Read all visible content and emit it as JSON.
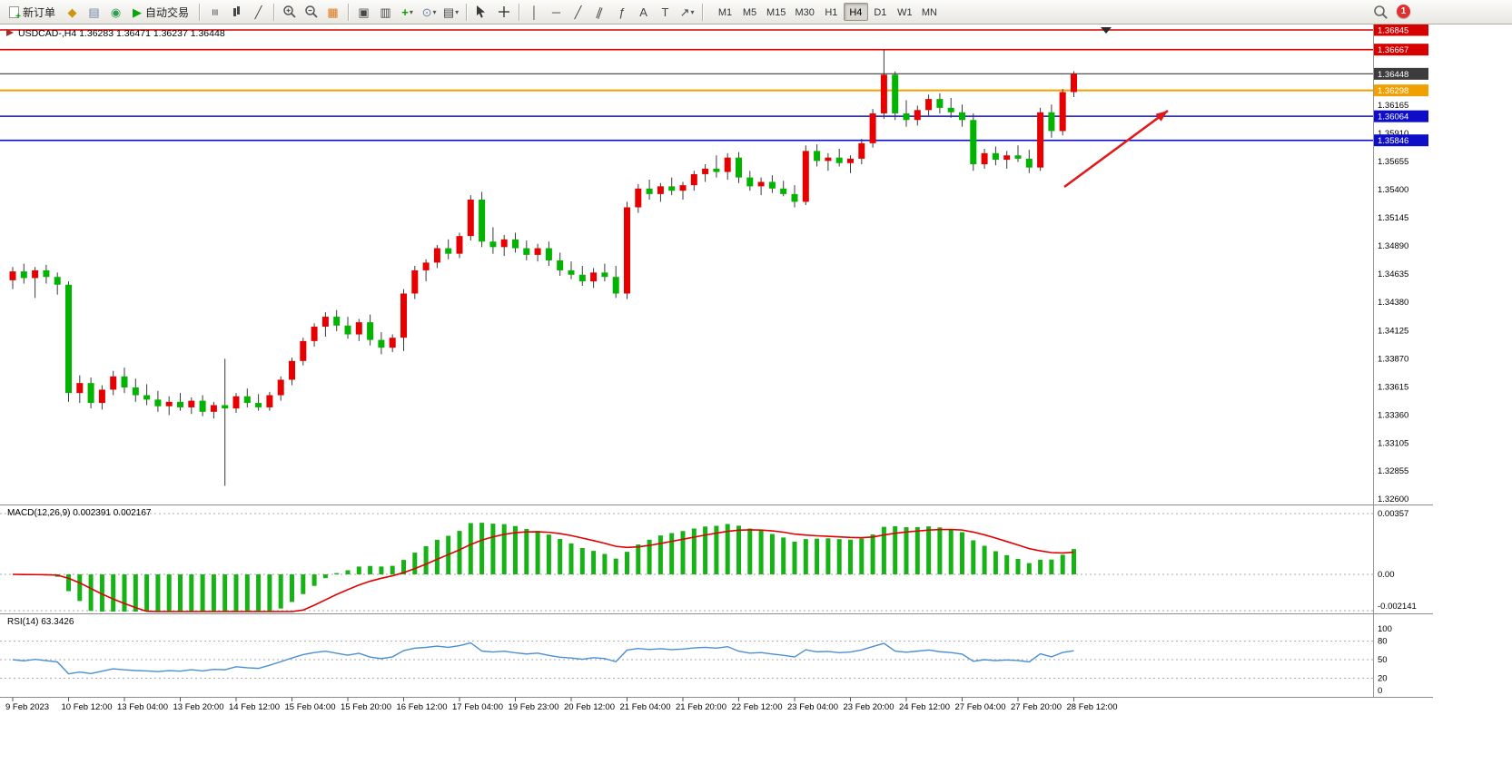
{
  "toolbar": {
    "new_order": "新订单",
    "auto_trading": "自动交易",
    "timeframes": [
      "M1",
      "M5",
      "M15",
      "M30",
      "H1",
      "H4",
      "D1",
      "W1",
      "MN"
    ],
    "active_timeframe": "H4",
    "notification_count": "1"
  },
  "chart": {
    "title": "USDCAD-,H4 1.36283 1.36471 1.36237 1.36448",
    "symbol": "USDCAD",
    "period": "H4",
    "ohlc": {
      "open": "1.36283",
      "high": "1.36471",
      "low": "1.36237",
      "close": "1.36448"
    },
    "price_axis": {
      "gridline_labels": [
        "1.36165",
        "1.35910",
        "1.35655",
        "1.35400",
        "1.35145",
        "1.34890",
        "1.34635",
        "1.34380",
        "1.34125",
        "1.33870",
        "1.33615",
        "1.33360",
        "1.33105",
        "1.32855",
        "1.32600"
      ]
    },
    "hlines": [
      {
        "price": 1.36845,
        "label": "1.36845",
        "color": "#d60000",
        "width": 1.6
      },
      {
        "price": 1.36667,
        "label": "1.36667",
        "color": "#d60000",
        "width": 1.6
      },
      {
        "price": 1.36448,
        "label": "1.36448",
        "color": "#3c3c3c",
        "width": 1.1
      },
      {
        "price": 1.36298,
        "label": "1.36298",
        "color": "#f0a000",
        "width": 2.0
      },
      {
        "price": 1.36064,
        "label": "1.36064",
        "color": "#0e0ec8",
        "width": 1.6
      },
      {
        "price": 1.35846,
        "label": "1.35846",
        "color": "#0e0ec8",
        "width": 1.6
      }
    ],
    "annotations": {
      "arrow": {
        "from": [
          1172,
          179
        ],
        "to": [
          1286,
          95
        ],
        "color": "#e01818"
      }
    }
  },
  "macd_panel": {
    "label": "MACD(12,26,9) 0.002391 0.002167",
    "axis_labels": [
      "0.00357",
      "0.00",
      "-0.002141"
    ],
    "histogram_color": "#16b216",
    "signal_color": "#e00000"
  },
  "rsi_panel": {
    "label": "RSI(14) 63.3426",
    "axis_labels": [
      "100",
      "80",
      "50",
      "20",
      "0"
    ],
    "levels": [
      80,
      50,
      20
    ],
    "line_color": "#4a8fd3"
  },
  "chart_data": [
    {
      "type": "candlestick",
      "symbol": "USDCAD",
      "timeframe": "H4",
      "up_color": "#e80000",
      "down_color": "#00b400",
      "y_axis": {
        "min": 1.32551,
        "max": 1.36894
      },
      "time_labels": [
        "9 Feb 2023",
        "10 Feb 12:00",
        "13 Feb 04:00",
        "13 Feb 20:00",
        "14 Feb 12:00",
        "15 Feb 04:00",
        "15 Feb 20:00",
        "16 Feb 12:00",
        "17 Feb 04:00",
        "19 Feb 23:00",
        "20 Feb 12:00",
        "21 Feb 04:00",
        "21 Feb 20:00",
        "22 Feb 12:00",
        "23 Feb 04:00",
        "23 Feb 20:00",
        "24 Feb 12:00",
        "27 Feb 04:00",
        "27 Feb 20:00",
        "28 Feb 12:00"
      ],
      "candles": [
        [
          1.3458,
          1.347,
          1.345,
          1.3466
        ],
        [
          1.3466,
          1.3473,
          1.3455,
          1.346
        ],
        [
          1.346,
          1.347,
          1.3442,
          1.3467
        ],
        [
          1.3467,
          1.3472,
          1.3455,
          1.3461
        ],
        [
          1.3461,
          1.3465,
          1.3445,
          1.3454
        ],
        [
          1.3454,
          1.3457,
          1.3348,
          1.3356
        ],
        [
          1.3356,
          1.3372,
          1.3347,
          1.3365
        ],
        [
          1.3365,
          1.337,
          1.3342,
          1.3347
        ],
        [
          1.3347,
          1.3363,
          1.3341,
          1.3359
        ],
        [
          1.3359,
          1.3376,
          1.3354,
          1.3371
        ],
        [
          1.3371,
          1.3379,
          1.3356,
          1.3361
        ],
        [
          1.3361,
          1.3369,
          1.3348,
          1.3354
        ],
        [
          1.3354,
          1.3364,
          1.3345,
          1.335
        ],
        [
          1.335,
          1.3358,
          1.3339,
          1.3344
        ],
        [
          1.3344,
          1.3353,
          1.3336,
          1.3348
        ],
        [
          1.3348,
          1.3356,
          1.334,
          1.3343
        ],
        [
          1.3343,
          1.3352,
          1.3337,
          1.3349
        ],
        [
          1.3349,
          1.3354,
          1.3335,
          1.3339
        ],
        [
          1.3339,
          1.3348,
          1.3333,
          1.3345
        ],
        [
          1.3345,
          1.3387,
          1.3272,
          1.3342
        ],
        [
          1.3342,
          1.3356,
          1.3338,
          1.3353
        ],
        [
          1.3353,
          1.336,
          1.3343,
          1.3347
        ],
        [
          1.3347,
          1.3355,
          1.334,
          1.3343
        ],
        [
          1.3343,
          1.3357,
          1.334,
          1.3354
        ],
        [
          1.3354,
          1.3371,
          1.3349,
          1.3368
        ],
        [
          1.3368,
          1.3388,
          1.3363,
          1.3385
        ],
        [
          1.3385,
          1.3406,
          1.3381,
          1.3403
        ],
        [
          1.3403,
          1.3419,
          1.3398,
          1.3416
        ],
        [
          1.3416,
          1.3429,
          1.3407,
          1.3425
        ],
        [
          1.3425,
          1.3431,
          1.3412,
          1.3417
        ],
        [
          1.3417,
          1.3425,
          1.3405,
          1.3409
        ],
        [
          1.3409,
          1.3423,
          1.3403,
          1.342
        ],
        [
          1.342,
          1.3427,
          1.3399,
          1.3404
        ],
        [
          1.3404,
          1.3411,
          1.3391,
          1.3397
        ],
        [
          1.3397,
          1.3409,
          1.3393,
          1.3406
        ],
        [
          1.3406,
          1.345,
          1.3394,
          1.3446
        ],
        [
          1.3446,
          1.3471,
          1.3441,
          1.3467
        ],
        [
          1.3467,
          1.3477,
          1.3457,
          1.3474
        ],
        [
          1.3474,
          1.349,
          1.3469,
          1.3487
        ],
        [
          1.3487,
          1.3495,
          1.3477,
          1.3482
        ],
        [
          1.3482,
          1.3501,
          1.3478,
          1.3498
        ],
        [
          1.3498,
          1.3535,
          1.3494,
          1.3531
        ],
        [
          1.3531,
          1.3538,
          1.3488,
          1.3493
        ],
        [
          1.3493,
          1.3506,
          1.3482,
          1.3488
        ],
        [
          1.3488,
          1.3499,
          1.348,
          1.3495
        ],
        [
          1.3495,
          1.3501,
          1.3483,
          1.3487
        ],
        [
          1.3487,
          1.3494,
          1.3476,
          1.3481
        ],
        [
          1.3481,
          1.3491,
          1.3475,
          1.3487
        ],
        [
          1.3487,
          1.3493,
          1.3471,
          1.3476
        ],
        [
          1.3476,
          1.3483,
          1.3462,
          1.3467
        ],
        [
          1.3467,
          1.3475,
          1.3459,
          1.3463
        ],
        [
          1.3463,
          1.3471,
          1.3453,
          1.3457
        ],
        [
          1.3457,
          1.3469,
          1.3451,
          1.3465
        ],
        [
          1.3465,
          1.3473,
          1.3457,
          1.3461
        ],
        [
          1.3461,
          1.3471,
          1.3442,
          1.3446
        ],
        [
          1.3446,
          1.3529,
          1.3441,
          1.3524
        ],
        [
          1.3524,
          1.3545,
          1.3519,
          1.3541
        ],
        [
          1.3541,
          1.3549,
          1.3531,
          1.3536
        ],
        [
          1.3536,
          1.3546,
          1.3529,
          1.3543
        ],
        [
          1.3543,
          1.3551,
          1.3535,
          1.3539
        ],
        [
          1.3539,
          1.3547,
          1.3531,
          1.3544
        ],
        [
          1.3544,
          1.3557,
          1.3539,
          1.3554
        ],
        [
          1.3554,
          1.3563,
          1.3547,
          1.3559
        ],
        [
          1.3559,
          1.3571,
          1.3551,
          1.3556
        ],
        [
          1.3556,
          1.3573,
          1.3549,
          1.3569
        ],
        [
          1.3569,
          1.3574,
          1.3546,
          1.3551
        ],
        [
          1.3551,
          1.3557,
          1.3539,
          1.3543
        ],
        [
          1.3543,
          1.3551,
          1.3535,
          1.3547
        ],
        [
          1.3547,
          1.3553,
          1.3537,
          1.3541
        ],
        [
          1.3541,
          1.3548,
          1.3534,
          1.3536
        ],
        [
          1.3536,
          1.3544,
          1.3524,
          1.3529
        ],
        [
          1.3529,
          1.358,
          1.3526,
          1.3575
        ],
        [
          1.3575,
          1.3581,
          1.3561,
          1.3566
        ],
        [
          1.3566,
          1.3573,
          1.3557,
          1.3569
        ],
        [
          1.3569,
          1.3577,
          1.3561,
          1.3564
        ],
        [
          1.3564,
          1.3571,
          1.3555,
          1.3568
        ],
        [
          1.3568,
          1.3586,
          1.3563,
          1.3582
        ],
        [
          1.3582,
          1.3613,
          1.3578,
          1.3609
        ],
        [
          1.3609,
          1.3667,
          1.3604,
          1.3644
        ],
        [
          1.3644,
          1.3647,
          1.3603,
          1.3609
        ],
        [
          1.3609,
          1.3621,
          1.3597,
          1.3603
        ],
        [
          1.3603,
          1.3616,
          1.3598,
          1.3612
        ],
        [
          1.3612,
          1.3626,
          1.3607,
          1.3622
        ],
        [
          1.3622,
          1.3627,
          1.3609,
          1.3614
        ],
        [
          1.3614,
          1.3623,
          1.3605,
          1.361
        ],
        [
          1.361,
          1.3617,
          1.3597,
          1.3603
        ],
        [
          1.3603,
          1.3609,
          1.3557,
          1.3563
        ],
        [
          1.3563,
          1.3577,
          1.3559,
          1.3573
        ],
        [
          1.3573,
          1.3579,
          1.3562,
          1.3567
        ],
        [
          1.3567,
          1.3575,
          1.3559,
          1.3571
        ],
        [
          1.3571,
          1.358,
          1.3565,
          1.3568
        ],
        [
          1.3568,
          1.3576,
          1.3555,
          1.356
        ],
        [
          1.356,
          1.3614,
          1.3557,
          1.361
        ],
        [
          1.361,
          1.3617,
          1.3587,
          1.3593
        ],
        [
          1.3593,
          1.3631,
          1.3589,
          1.36283
        ],
        [
          1.36283,
          1.36471,
          1.36237,
          1.36448
        ]
      ]
    },
    {
      "type": "indicator",
      "name": "MACD",
      "params": [
        12,
        26,
        9
      ],
      "values_shown": [
        "0.002391",
        "0.002167"
      ],
      "scale_labels": [
        "0.00357",
        "0.00",
        "-0.002141"
      ]
    },
    {
      "type": "indicator",
      "name": "RSI",
      "params": [
        14
      ],
      "value_shown": "63.3426",
      "levels": [
        80,
        50,
        20
      ]
    }
  ]
}
